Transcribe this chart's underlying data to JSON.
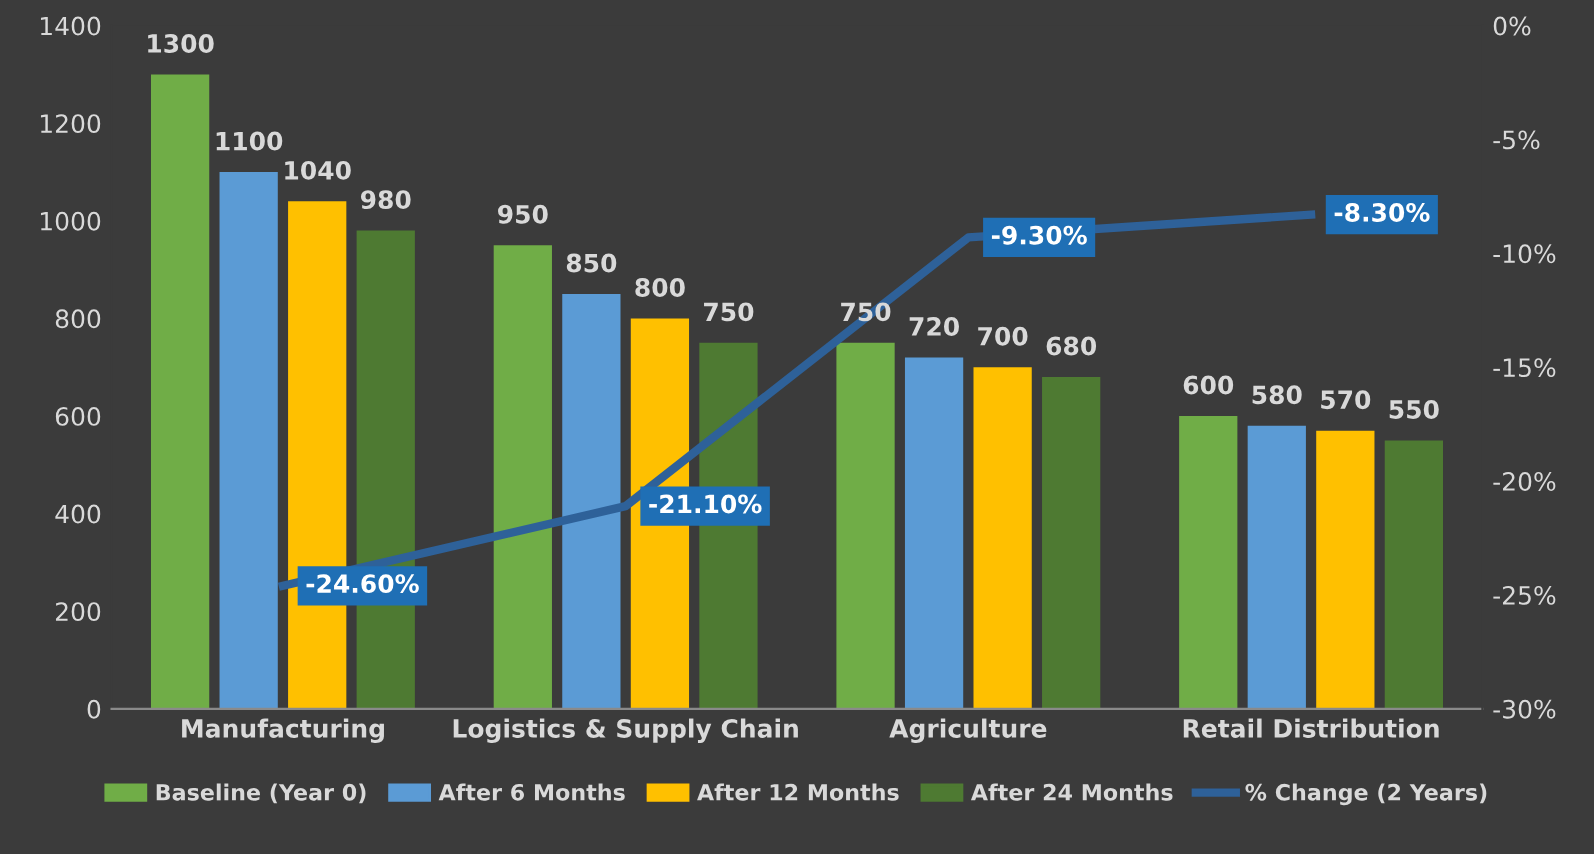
{
  "chart_data": {
    "type": "bar",
    "categories": [
      "Manufacturing",
      "Logistics & Supply Chain",
      "Agriculture",
      "Retail Distribution"
    ],
    "series": [
      {
        "name": "Baseline (Year 0)",
        "color": "#70ad47",
        "values": [
          1300,
          950,
          750,
          600
        ]
      },
      {
        "name": "After 6 Months",
        "color": "#5b9bd5",
        "values": [
          1100,
          850,
          720,
          580
        ]
      },
      {
        "name": "After 12 Months",
        "color": "#ffc000",
        "values": [
          1040,
          800,
          700,
          570
        ]
      },
      {
        "name": "After 24 Months",
        "color": "#4e7a32",
        "values": [
          980,
          750,
          680,
          550
        ]
      },
      {
        "name": "% Change (2 Years)",
        "type": "line",
        "axis": "y2",
        "color": "#2e6199",
        "values": [
          -24.6,
          -21.1,
          -9.3,
          -8.3
        ],
        "value_labels": [
          "-24.60%",
          "-21.10%",
          "-9.30%",
          "-8.30%"
        ]
      }
    ],
    "data_labels": true,
    "ylim": [
      0,
      1400
    ],
    "yticks": [
      0,
      200,
      400,
      600,
      800,
      1000,
      1200,
      1400
    ],
    "y2lim": [
      -30,
      0
    ],
    "y2ticks": [
      {
        "value": -30,
        "label": "-30%"
      },
      {
        "value": -25,
        "label": "-25%"
      },
      {
        "value": -20,
        "label": "-20%"
      },
      {
        "value": -15,
        "label": "-15%"
      },
      {
        "value": -10,
        "label": "-10%"
      },
      {
        "value": -5,
        "label": "-5%"
      },
      {
        "value": 0,
        "label": "0%"
      }
    ],
    "grid": false,
    "legend": "bottom",
    "line_style": "solid"
  }
}
